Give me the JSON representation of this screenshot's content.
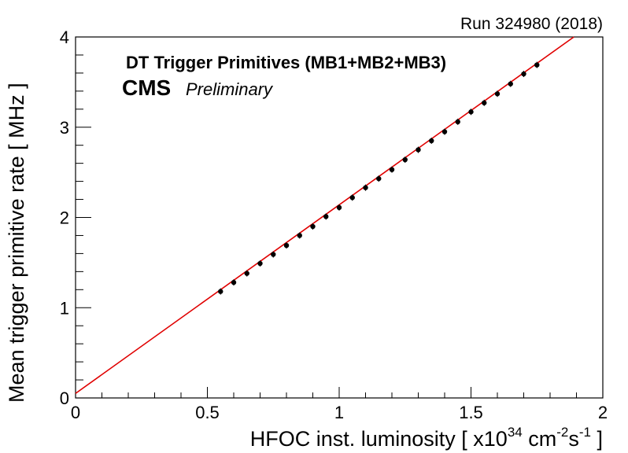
{
  "chart_data": {
    "type": "scatter",
    "run_label": "Run 324980 (2018)",
    "title": "DT Trigger Primitives (MB1+MB2+MB3)",
    "experiment_label": "CMS",
    "status_label": "Preliminary",
    "xlabel": {
      "main": "HFOC inst. luminosity [ x10",
      "exp1": "34",
      "unit1": " cm",
      "exp2": "-2",
      "unit2": "s",
      "exp3": "-1",
      "close": " ]"
    },
    "ylabel": "Mean trigger primitive rate [ MHz ]",
    "xlim": [
      0,
      2
    ],
    "ylim": [
      0,
      4
    ],
    "x_ticks": [
      {
        "value": 0,
        "label": "0"
      },
      {
        "value": 0.5,
        "label": "0.5"
      },
      {
        "value": 1,
        "label": "1"
      },
      {
        "value": 1.5,
        "label": "1.5"
      },
      {
        "value": 2,
        "label": "2"
      }
    ],
    "y_ticks": [
      {
        "value": 0,
        "label": "0"
      },
      {
        "value": 1,
        "label": "1"
      },
      {
        "value": 2,
        "label": "2"
      },
      {
        "value": 3,
        "label": "3"
      },
      {
        "value": 4,
        "label": "4"
      }
    ],
    "grid": false,
    "series": [
      {
        "kind": "points",
        "color": "#000000",
        "x": [
          0.55,
          0.6,
          0.65,
          0.7,
          0.75,
          0.8,
          0.85,
          0.9,
          0.95,
          1.0,
          1.05,
          1.1,
          1.15,
          1.2,
          1.25,
          1.3,
          1.35,
          1.4,
          1.45,
          1.5,
          1.55,
          1.6,
          1.65,
          1.7,
          1.75
        ],
        "y": [
          1.18,
          1.28,
          1.38,
          1.49,
          1.59,
          1.69,
          1.8,
          1.9,
          2.01,
          2.11,
          2.22,
          2.33,
          2.43,
          2.53,
          2.64,
          2.75,
          2.85,
          2.95,
          3.06,
          3.17,
          3.27,
          3.37,
          3.48,
          3.59,
          3.69
        ]
      },
      {
        "kind": "fit-line",
        "color": "#e00000",
        "x": [
          0,
          1.89
        ],
        "y": [
          0.05,
          4.0
        ]
      }
    ]
  }
}
